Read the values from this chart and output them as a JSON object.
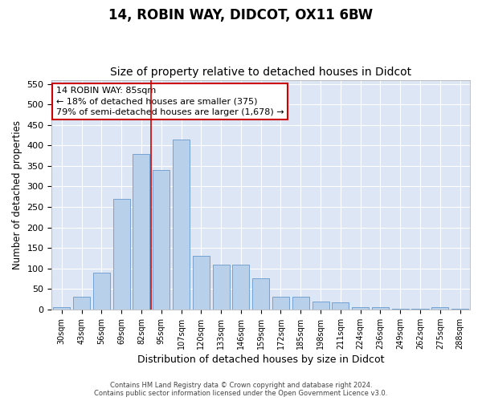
{
  "title_line1": "14, ROBIN WAY, DIDCOT, OX11 6BW",
  "title_line2": "Size of property relative to detached houses in Didcot",
  "xlabel": "Distribution of detached houses by size in Didcot",
  "ylabel": "Number of detached properties",
  "categories": [
    "30sqm",
    "43sqm",
    "56sqm",
    "69sqm",
    "82sqm",
    "95sqm",
    "107sqm",
    "120sqm",
    "133sqm",
    "146sqm",
    "159sqm",
    "172sqm",
    "185sqm",
    "198sqm",
    "211sqm",
    "224sqm",
    "236sqm",
    "249sqm",
    "262sqm",
    "275sqm",
    "288sqm"
  ],
  "values": [
    5,
    30,
    90,
    270,
    380,
    340,
    415,
    130,
    110,
    110,
    75,
    30,
    30,
    20,
    18,
    5,
    5,
    2,
    2,
    5,
    2
  ],
  "bar_color": "#b8d0ea",
  "bar_edgecolor": "#6699cc",
  "vline_x": 4.5,
  "vline_color": "#cc0000",
  "annotation_text": "14 ROBIN WAY: 85sqm\n← 18% of detached houses are smaller (375)\n79% of semi-detached houses are larger (1,678) →",
  "annotation_box_color": "#ffffff",
  "annotation_box_edgecolor": "#cc0000",
  "ylim": [
    0,
    560
  ],
  "yticks": [
    0,
    50,
    100,
    150,
    200,
    250,
    300,
    350,
    400,
    450,
    500,
    550
  ],
  "plot_background": "#dce6f5",
  "fig_background": "#ffffff",
  "footer_line1": "Contains HM Land Registry data © Crown copyright and database right 2024.",
  "footer_line2": "Contains public sector information licensed under the Open Government Licence v3.0.",
  "title_fontsize": 12,
  "subtitle_fontsize": 10,
  "xlabel_fontsize": 9,
  "ylabel_fontsize": 8.5
}
